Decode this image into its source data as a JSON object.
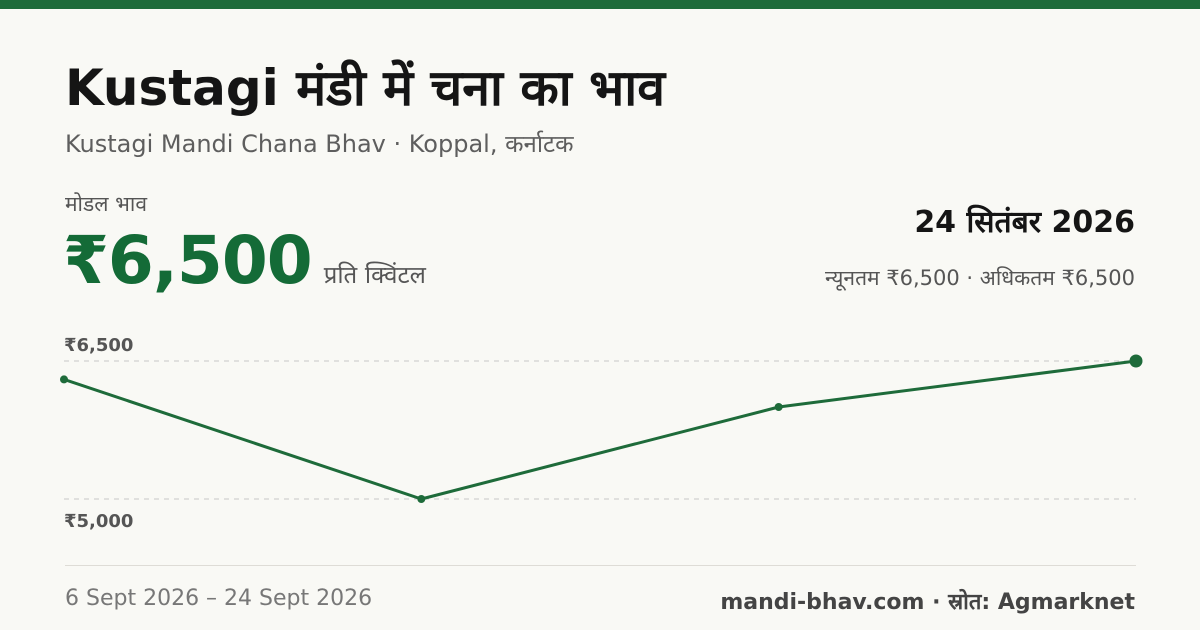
{
  "header": {
    "title": "Kustagi मंडी में चना का भाव",
    "subtitle": "Kustagi Mandi Chana Bhav · Koppal, कर्नाटक"
  },
  "summary": {
    "modal_label": "मोडल भाव",
    "price": "₹6,500",
    "unit": "प्रति क्विंटल",
    "date": "24 सितंबर 2026",
    "range": "न्यूनतम ₹6,500 · अधिकतम ₹6,500"
  },
  "footer": {
    "period": "6 Sept 2026 – 24 Sept 2026",
    "source": "mandi-bhav.com · स्रोत: Agmarknet"
  },
  "colors": {
    "accent": "#146b37",
    "line": "#1e6b3a",
    "gridline": "#c8c8c8"
  },
  "chart_data": {
    "type": "line",
    "x": [
      "6 Sept 2026",
      "",
      "",
      "24 Sept 2026"
    ],
    "values": [
      6300,
      5000,
      6000,
      6500
    ],
    "ylim": [
      5000,
      6500
    ],
    "yticks": [
      6500,
      5000
    ],
    "ytick_labels": [
      "₹6,500",
      "₹5,000"
    ],
    "grid": true,
    "legend": "none"
  }
}
